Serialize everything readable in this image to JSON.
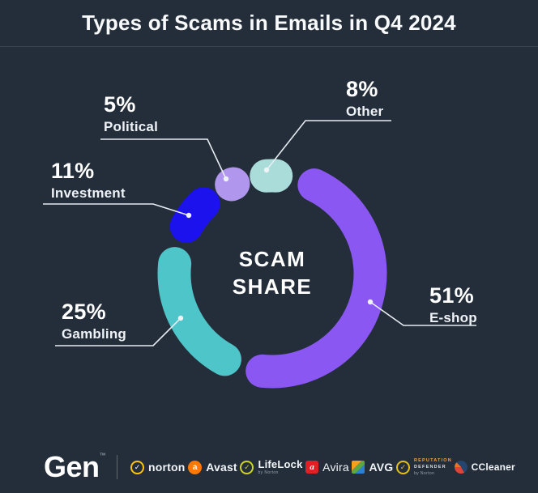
{
  "header": {
    "title": "Types of Scams in Emails in Q4 2024"
  },
  "chart_data": {
    "type": "donut",
    "title": "Types of Scams in Emails in Q4 2024",
    "center_label": "SCAM SHARE",
    "unit": "%",
    "start_angle_deg": -15,
    "direction": "clockwise",
    "legend_position": "around",
    "segments": [
      {
        "name": "Other",
        "pct": 8,
        "pct_label": "8%",
        "color": "#aaddda"
      },
      {
        "name": "E-shop",
        "pct": 51,
        "pct_label": "51%",
        "color": "#8a57f2"
      },
      {
        "name": "Gambling",
        "pct": 25,
        "pct_label": "25%",
        "color": "#4ec5c8"
      },
      {
        "name": "Investment",
        "pct": 11,
        "pct_label": "11%",
        "color": "#1b12ee"
      },
      {
        "name": "Political",
        "pct": 5,
        "pct_label": "5%",
        "color": "#b096ec"
      }
    ]
  },
  "center": {
    "line1": "SCAM",
    "line2": "SHARE"
  },
  "footer": {
    "logo": "Gen",
    "logo_tm": "™",
    "brands": [
      {
        "id": "norton",
        "label": "norton"
      },
      {
        "id": "avast",
        "label": "Avast"
      },
      {
        "id": "lifelock",
        "label": "LifeLock",
        "sub": "by Norton"
      },
      {
        "id": "avira",
        "label": "Avira"
      },
      {
        "id": "avg",
        "label": "AVG"
      },
      {
        "id": "reputation-defender",
        "label_line1": "REPUTATION",
        "label_line2": "DEFENDER",
        "sub": "by Norton"
      },
      {
        "id": "ccleaner",
        "label": "CCleaner"
      }
    ]
  }
}
